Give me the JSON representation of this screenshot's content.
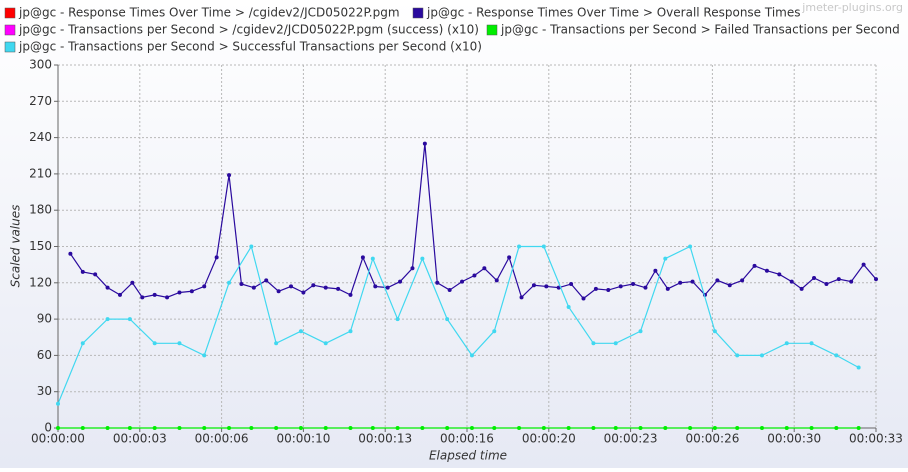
{
  "chart_data": {
    "type": "line",
    "watermark": "jmeter-plugins.org",
    "x_label": "Elapsed time",
    "y_label": "Scaled values",
    "xlim": [
      0,
      33
    ],
    "ylim": [
      0,
      300
    ],
    "xticks": [
      {
        "value": 0,
        "label": "00:00:00"
      },
      {
        "value": 3.3,
        "label": "00:00:03"
      },
      {
        "value": 6.6,
        "label": "00:00:06"
      },
      {
        "value": 9.9,
        "label": "00:00:10"
      },
      {
        "value": 13.2,
        "label": "00:00:13"
      },
      {
        "value": 16.5,
        "label": "00:00:16"
      },
      {
        "value": 19.8,
        "label": "00:00:20"
      },
      {
        "value": 23.1,
        "label": "00:00:23"
      },
      {
        "value": 26.4,
        "label": "00:00:26"
      },
      {
        "value": 29.7,
        "label": "00:00:30"
      },
      {
        "value": 33,
        "label": "00:00:33"
      }
    ],
    "yticks": [
      0,
      30,
      60,
      90,
      120,
      150,
      180,
      210,
      240,
      270,
      300
    ],
    "grid": true,
    "series": [
      {
        "name": "jp@gc - Response Times Over Time > /cgidev2/JCD05022P.pgm",
        "color": "#ff0000"
      },
      {
        "name": "jp@gc - Response Times Over Time > Overall Response Times",
        "color": "#2a0a9e",
        "x": [
          0.5,
          1.0,
          1.5,
          2.0,
          2.5,
          3.0,
          3.4,
          3.9,
          4.4,
          4.9,
          5.4,
          5.9,
          6.4,
          6.9,
          7.4,
          7.9,
          8.4,
          8.9,
          9.4,
          9.9,
          10.3,
          10.8,
          11.3,
          11.8,
          12.3,
          12.8,
          13.3,
          13.8,
          14.3,
          14.8,
          15.3,
          15.8,
          16.3,
          16.8,
          17.2,
          17.7,
          18.2,
          18.7,
          19.2,
          19.7,
          20.2,
          20.7,
          21.2,
          21.7,
          22.2,
          22.7,
          23.2,
          23.7,
          24.1,
          24.6,
          25.1,
          25.6,
          26.1,
          26.6,
          27.1,
          27.6,
          28.1,
          28.6,
          29.1,
          29.6,
          30.0,
          30.5,
          31.0,
          31.5,
          32.0,
          32.5,
          33.0
        ],
        "values": [
          144,
          129,
          127,
          116,
          110,
          120,
          108,
          110,
          108,
          112,
          113,
          117,
          141,
          209,
          119,
          116,
          122,
          113,
          117,
          112,
          118,
          116,
          115,
          110,
          141,
          117,
          116,
          121,
          132,
          235,
          120,
          114,
          121,
          126,
          132,
          122,
          141,
          108,
          118,
          117,
          116,
          119,
          107,
          115,
          114,
          117,
          119,
          116,
          130,
          115,
          120,
          121,
          110,
          122,
          118,
          122,
          134,
          130,
          127,
          121,
          115,
          124,
          119,
          123,
          121,
          135,
          123
        ]
      },
      {
        "name": "jp@gc - Transactions per Second > /cgidev2/JCD05022P.pgm (success) (x10)",
        "color": "#ff00ff"
      },
      {
        "name": "jp@gc - Transactions per Second > Failed Transactions per Second",
        "color": "#00ee00",
        "x": [
          0,
          1.0,
          2.0,
          2.9,
          3.9,
          4.9,
          5.9,
          6.9,
          7.8,
          8.8,
          9.8,
          10.8,
          11.8,
          12.7,
          13.7,
          14.7,
          15.7,
          16.7,
          17.6,
          18.6,
          19.6,
          20.6,
          21.6,
          22.5,
          23.5,
          24.5,
          25.5,
          26.5,
          27.4,
          28.4,
          29.4,
          30.4,
          31.4,
          32.3
        ],
        "values": [
          0,
          0,
          0,
          0,
          0,
          0,
          0,
          0,
          0,
          0,
          0,
          0,
          0,
          0,
          0,
          0,
          0,
          0,
          0,
          0,
          0,
          0,
          0,
          0,
          0,
          0,
          0,
          0,
          0,
          0,
          0,
          0,
          0,
          0
        ]
      },
      {
        "name": "jp@gc - Transactions per Second > Successful Transactions per Second (x10)",
        "color": "#40d8f0",
        "x": [
          0,
          1.0,
          2.0,
          2.9,
          3.9,
          4.9,
          5.9,
          6.9,
          7.8,
          8.8,
          9.8,
          10.8,
          11.8,
          12.7,
          13.7,
          14.7,
          15.7,
          16.7,
          17.6,
          18.6,
          19.6,
          20.6,
          21.6,
          22.5,
          23.5,
          24.5,
          25.5,
          26.5,
          27.4,
          28.4,
          29.4,
          30.4,
          31.4,
          32.3
        ],
        "values": [
          20,
          70,
          90,
          90,
          70,
          70,
          60,
          120,
          150,
          70,
          80,
          70,
          80,
          140,
          90,
          140,
          90,
          60,
          80,
          150,
          150,
          100,
          70,
          70,
          80,
          140,
          150,
          80,
          60,
          60,
          70,
          70,
          60,
          50
        ]
      }
    ]
  }
}
